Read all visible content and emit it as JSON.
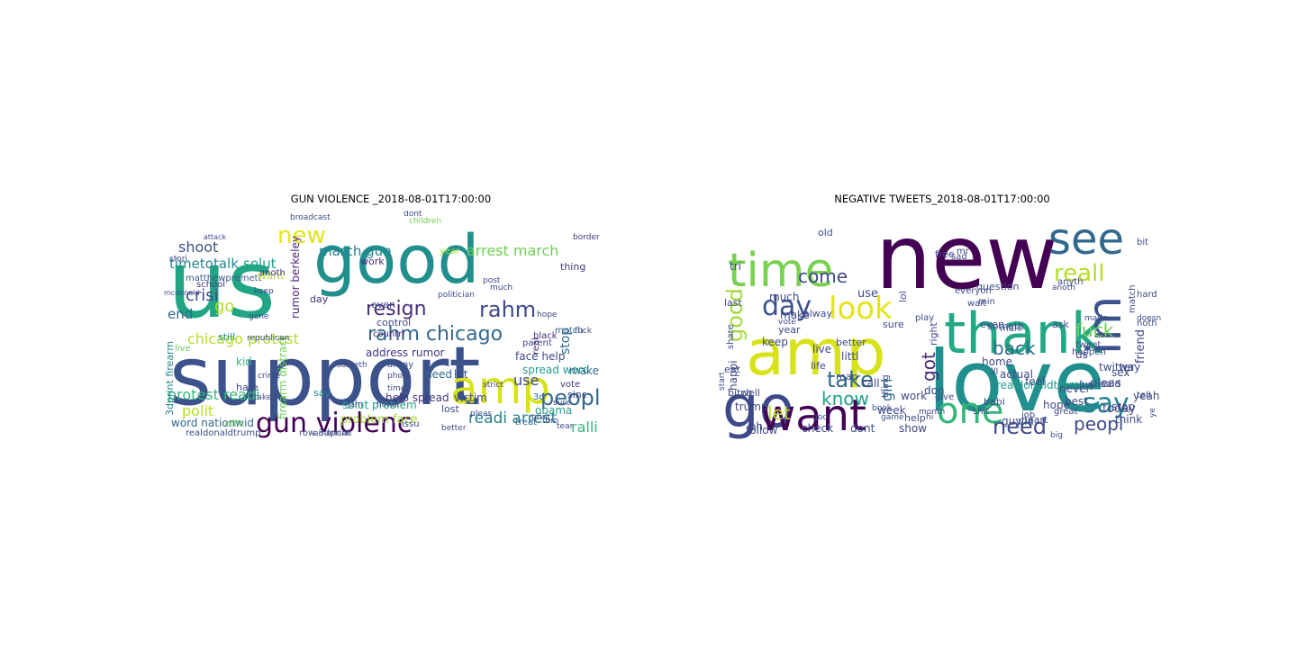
{
  "figure": {
    "panels": [
      {
        "title": "GUN VIOLENCE _2018-08-01T17:00:00",
        "words": [
          {
            "text": "us",
            "color": "#21a685"
          },
          {
            "text": "support",
            "color": "#3b528b"
          },
          {
            "text": "good",
            "color": "#218f8d"
          },
          {
            "text": "amp",
            "color": "#d8e219"
          },
          {
            "text": "gun violenc",
            "color": "#440154"
          },
          {
            "text": "resign",
            "color": "#472d7b"
          },
          {
            "text": "rahm",
            "color": "#3e4989"
          },
          {
            "text": "rahm chicago",
            "color": "#31688e"
          },
          {
            "text": "peopl",
            "color": "#31688e"
          },
          {
            "text": "new",
            "color": "#e5e419"
          },
          {
            "text": "chicago protest",
            "color": "#b5de2b"
          },
          {
            "text": "protest readi",
            "color": "#35b779"
          },
          {
            "text": "arrest march",
            "color": "#6ece58"
          },
          {
            "text": "march gun",
            "color": "#26828e"
          },
          {
            "text": "shoot",
            "color": "#3b528b"
          },
          {
            "text": "timetotalk",
            "color": "#25858e"
          },
          {
            "text": "solut",
            "color": "#1f9e89"
          },
          {
            "text": "crisi",
            "color": "#3e4989"
          },
          {
            "text": "end",
            "color": "#31688e"
          },
          {
            "text": "go",
            "color": "#b5de2b"
          },
          {
            "text": "readi arrest",
            "color": "#26828e"
          },
          {
            "text": "ralli",
            "color": "#35b779"
          },
          {
            "text": "polit",
            "color": "#b5de2b"
          },
          {
            "text": "use",
            "color": "#3e4989"
          },
          {
            "text": "stop",
            "color": "#31688e"
          },
          {
            "text": "rumor berkeley",
            "color": "#482878"
          },
          {
            "text": "address rumor",
            "color": "#46327e"
          },
          {
            "text": "spread word",
            "color": "#1f9e89"
          },
          {
            "text": "face help",
            "color": "#3e4989"
          },
          {
            "text": "problem face",
            "color": "#a0da39"
          },
          {
            "text": "solut problem",
            "color": "#1fa187"
          },
          {
            "text": "help spread",
            "color": "#46337e"
          },
          {
            "text": "word nationwid",
            "color": "#31688e"
          },
          {
            "text": "realdonaldtrump",
            "color": "#3e4989"
          },
          {
            "text": "3dprint firearm",
            "color": "#26828e"
          },
          {
            "text": "firearm distract",
            "color": "#6ece58"
          },
          {
            "text": "row 3dprint",
            "color": "#3e4989"
          },
          {
            "text": "matthewpremett",
            "color": "#38588c"
          },
          {
            "text": "control",
            "color": "#3e4989"
          },
          {
            "text": "countri",
            "color": "#482878"
          },
          {
            "text": "school",
            "color": "#46337e"
          },
          {
            "text": "still",
            "color": "#218f8d"
          },
          {
            "text": "live",
            "color": "#6ece58"
          },
          {
            "text": "want",
            "color": "#b5de2b"
          },
          {
            "text": "kid",
            "color": "#35b779"
          },
          {
            "text": "hate",
            "color": "#3e4989"
          },
          {
            "text": "need",
            "color": "#31688e"
          },
          {
            "text": "lost",
            "color": "#3e4989"
          },
          {
            "text": "victim",
            "color": "#3e4989"
          },
          {
            "text": "obama",
            "color": "#1f9e89"
          },
          {
            "text": "make",
            "color": "#31688e"
          },
          {
            "text": "sinc",
            "color": "#3e4989"
          },
          {
            "text": "vote",
            "color": "#46337e"
          },
          {
            "text": "match",
            "color": "#31688e"
          },
          {
            "text": "black",
            "color": "#482878"
          },
          {
            "text": "thing",
            "color": "#46337e"
          },
          {
            "text": "let",
            "color": "#3e4989"
          },
          {
            "text": "3d",
            "color": "#31688e"
          },
          {
            "text": "year",
            "color": "#a0da39"
          },
          {
            "text": "even",
            "color": "#3e4989"
          },
          {
            "text": "work",
            "color": "#482878"
          },
          {
            "text": "day",
            "color": "#46337e"
          },
          {
            "text": "say",
            "color": "#26828e"
          },
          {
            "text": "issu",
            "color": "#3e4989"
          },
          {
            "text": "offic",
            "color": "#6ece58"
          },
          {
            "text": "real",
            "color": "#482878"
          },
          {
            "text": "parent",
            "color": "#3e4989"
          },
          {
            "text": "treat",
            "color": "#31688e"
          },
          {
            "text": "tear",
            "color": "#3e4989"
          },
          {
            "text": "american",
            "color": "#3e4989"
          },
          {
            "text": "anoth",
            "color": "#46337e"
          },
          {
            "text": "alway",
            "color": "#3e4989"
          },
          {
            "text": "someth",
            "color": "#3e4989"
          },
          {
            "text": "border",
            "color": "#46337e"
          },
          {
            "text": "children",
            "color": "#6ece58"
          },
          {
            "text": "broadcast",
            "color": "#3e4989"
          },
          {
            "text": "post",
            "color": "#3e4989"
          },
          {
            "text": "much",
            "color": "#3e4989"
          },
          {
            "text": "pleas",
            "color": "#3e4989"
          },
          {
            "text": "republican",
            "color": "#3e4989"
          },
          {
            "text": "crime",
            "color": "#3e4989"
          },
          {
            "text": "take",
            "color": "#3e4989"
          },
          {
            "text": "politician",
            "color": "#3e4989"
          },
          {
            "text": "strict",
            "color": "#3e4989"
          },
          {
            "text": "print",
            "color": "#3e4989"
          },
          {
            "text": "fuck",
            "color": "#3e4989"
          },
          {
            "text": "keep",
            "color": "#3e4989"
          },
          {
            "text": "photo",
            "color": "#3e4989"
          },
          {
            "text": "time",
            "color": "#3e4989"
          },
          {
            "text": "torn",
            "color": "#3e4989"
          },
          {
            "text": "better",
            "color": "#3e4989"
          },
          {
            "text": "jam",
            "color": "#3e4989"
          },
          {
            "text": "stori",
            "color": "#3e4989"
          },
          {
            "text": "mcdonald",
            "color": "#3e4989"
          },
          {
            "text": "attack",
            "color": "#3e4989"
          },
          {
            "text": "dont",
            "color": "#3e4989"
          },
          {
            "text": "gone",
            "color": "#3e4989"
          },
          {
            "text": "sure",
            "color": "#3e4989"
          },
          {
            "text": "honor",
            "color": "#3e4989"
          },
          {
            "text": "hope",
            "color": "#3e4989"
          }
        ]
      },
      {
        "title": "NEGATIVE TWEETS_2018-08-01T17:00:00",
        "words": [
          {
            "text": "new",
            "color": "#440154"
          },
          {
            "text": "love",
            "color": "#218f8d"
          },
          {
            "text": "thank",
            "color": "#22a884"
          },
          {
            "text": "see",
            "color": "#31688e"
          },
          {
            "text": "time",
            "color": "#7ad151"
          },
          {
            "text": "amp",
            "color": "#d8e219"
          },
          {
            "text": "go",
            "color": "#3e4989"
          },
          {
            "text": "want",
            "color": "#440154"
          },
          {
            "text": "im",
            "color": "#3b528b"
          },
          {
            "text": "one",
            "color": "#35b779"
          },
          {
            "text": "look",
            "color": "#e5e419"
          },
          {
            "text": "day",
            "color": "#3b528b"
          },
          {
            "text": "good",
            "color": "#a0da39"
          },
          {
            "text": "say",
            "color": "#26828e"
          },
          {
            "text": "reall",
            "color": "#b5de2b"
          },
          {
            "text": "need",
            "color": "#3e4989"
          },
          {
            "text": "take",
            "color": "#31688e"
          },
          {
            "text": "know",
            "color": "#1f9e89"
          },
          {
            "text": "come",
            "color": "#3e4989"
          },
          {
            "text": "back",
            "color": "#31688e"
          },
          {
            "text": "fuck",
            "color": "#6ece58"
          },
          {
            "text": "peopl",
            "color": "#3e4989"
          },
          {
            "text": "let",
            "color": "#b5de2b"
          },
          {
            "text": "got",
            "color": "#482878"
          },
          {
            "text": "girl",
            "color": "#31688e"
          },
          {
            "text": "realdonaldtrump",
            "color": "#1f9e89"
          },
          {
            "text": "friend",
            "color": "#3e4989"
          },
          {
            "text": "today",
            "color": "#3e4989"
          },
          {
            "text": "pleas",
            "color": "#3e4989"
          },
          {
            "text": "way",
            "color": "#3e4989"
          },
          {
            "text": "use",
            "color": "#3e4989"
          },
          {
            "text": "much",
            "color": "#3e4989"
          },
          {
            "text": "tri",
            "color": "#3e4989"
          },
          {
            "text": "make",
            "color": "#3e4989"
          },
          {
            "text": "year",
            "color": "#3e4989"
          },
          {
            "text": "keep",
            "color": "#3e4989"
          },
          {
            "text": "happi",
            "color": "#3e4989"
          },
          {
            "text": "trump",
            "color": "#3e4989"
          },
          {
            "text": "follow",
            "color": "#3e4989"
          },
          {
            "text": "oh",
            "color": "#3e4989"
          },
          {
            "text": "check",
            "color": "#3e4989"
          },
          {
            "text": "dont",
            "color": "#3e4989"
          },
          {
            "text": "show",
            "color": "#3e4989"
          },
          {
            "text": "live",
            "color": "#3e4989"
          },
          {
            "text": "littl",
            "color": "#3e4989"
          },
          {
            "text": "call",
            "color": "#3e4989"
          },
          {
            "text": "don",
            "color": "#3e4989"
          },
          {
            "text": "work",
            "color": "#3e4989"
          },
          {
            "text": "home",
            "color": "#3e4989"
          },
          {
            "text": "actual",
            "color": "#3e4989"
          },
          {
            "text": "feel",
            "color": "#3e4989"
          },
          {
            "text": "never",
            "color": "#3e4989"
          },
          {
            "text": "best",
            "color": "#3e4989"
          },
          {
            "text": "said",
            "color": "#3e4989"
          },
          {
            "text": "guy",
            "color": "#3e4989"
          },
          {
            "text": "via",
            "color": "#3e4989"
          },
          {
            "text": "hope",
            "color": "#3e4989"
          },
          {
            "text": "heart",
            "color": "#3e4989"
          },
          {
            "text": "think",
            "color": "#3e4989"
          },
          {
            "text": "stop",
            "color": "#3e4989"
          },
          {
            "text": "yeah",
            "color": "#3e4989"
          },
          {
            "text": "twitter",
            "color": "#3e4989"
          },
          {
            "text": "us",
            "color": "#3e4989"
          },
          {
            "text": "sex",
            "color": "#3e4989"
          },
          {
            "text": "week",
            "color": "#3e4989"
          },
          {
            "text": "help",
            "color": "#3e4989"
          },
          {
            "text": "better",
            "color": "#3e4989"
          },
          {
            "text": "alway",
            "color": "#3e4989"
          },
          {
            "text": "sure",
            "color": "#3e4989"
          },
          {
            "text": "even",
            "color": "#3e4989"
          },
          {
            "text": "right",
            "color": "#3e4989"
          },
          {
            "text": "someth",
            "color": "#3e4989"
          },
          {
            "text": "thing",
            "color": "#3e4989"
          },
          {
            "text": "man",
            "color": "#3e4989"
          },
          {
            "text": "life",
            "color": "#3e4989"
          },
          {
            "text": "well",
            "color": "#3e4989"
          },
          {
            "text": "bitch",
            "color": "#3e4989"
          },
          {
            "text": "eat",
            "color": "#3e4989"
          },
          {
            "text": "last",
            "color": "#3e4989"
          },
          {
            "text": "old",
            "color": "#3e4989"
          },
          {
            "text": "free",
            "color": "#3e4989"
          },
          {
            "text": "lol",
            "color": "#3e4989"
          },
          {
            "text": "play",
            "color": "#3e4989"
          },
          {
            "text": "question",
            "color": "#3e4989"
          },
          {
            "text": "game",
            "color": "#3e4989"
          },
          {
            "text": "book",
            "color": "#3e4989"
          },
          {
            "text": "babi",
            "color": "#3e4989"
          },
          {
            "text": "shit",
            "color": "#3e4989"
          },
          {
            "text": "job",
            "color": "#3e4989"
          },
          {
            "text": "great",
            "color": "#3e4989"
          },
          {
            "text": "made",
            "color": "#3e4989"
          },
          {
            "text": "ask",
            "color": "#3e4989"
          },
          {
            "text": "give",
            "color": "#3e4989"
          },
          {
            "text": "hi",
            "color": "#3e4989"
          },
          {
            "text": "mr",
            "color": "#3e4989"
          },
          {
            "text": "sad",
            "color": "#3e4989"
          },
          {
            "text": "wait",
            "color": "#3e4989"
          },
          {
            "text": "month",
            "color": "#3e4989"
          },
          {
            "text": "vote",
            "color": "#3e4989"
          },
          {
            "text": "tweet",
            "color": "#3e4989"
          },
          {
            "text": "bit",
            "color": "#3e4989"
          },
          {
            "text": "hard",
            "color": "#3e4989"
          },
          {
            "text": "fun",
            "color": "#3e4989"
          },
          {
            "text": "tell",
            "color": "#3e4989"
          },
          {
            "text": "big",
            "color": "#3e4989"
          },
          {
            "text": "ill",
            "color": "#3e4989"
          },
          {
            "text": "god",
            "color": "#3e4989"
          },
          {
            "text": "anyth",
            "color": "#3e4989"
          },
          {
            "text": "anoth",
            "color": "#3e4989"
          },
          {
            "text": "mani",
            "color": "#3e4989"
          },
          {
            "text": "min",
            "color": "#3e4989"
          },
          {
            "text": "share",
            "color": "#3e4989"
          },
          {
            "text": "happen",
            "color": "#3e4989"
          },
          {
            "text": "noth",
            "color": "#3e4989"
          },
          {
            "text": "match",
            "color": "#3e4989"
          },
          {
            "text": "ye",
            "color": "#3e4989"
          },
          {
            "text": "everyon",
            "color": "#3e4989"
          },
          {
            "text": "start",
            "color": "#3e4989"
          },
          {
            "text": "doesn",
            "color": "#3e4989"
          },
          {
            "text": "read",
            "color": "#3e4989"
          }
        ]
      }
    ]
  }
}
